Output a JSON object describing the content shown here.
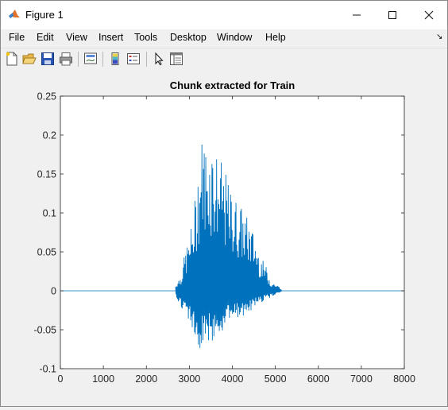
{
  "window": {
    "title": "Figure 1",
    "minimize_glyph": "—",
    "maximize_glyph": "☐",
    "close_glyph": "✕"
  },
  "menu": {
    "items": [
      "File",
      "Edit",
      "View",
      "Insert",
      "Tools",
      "Desktop",
      "Window",
      "Help"
    ],
    "dock_glyph": "↘"
  },
  "toolbar": {
    "icons": [
      "new-figure-icon",
      "open-file-icon",
      "save-icon",
      "print-icon",
      "link-plot-icon",
      "insert-colorbar-icon",
      "insert-legend-icon",
      "edit-plot-pointer-icon",
      "property-inspector-icon"
    ]
  },
  "colors": {
    "signal": "#0072BD",
    "axes_bg": "#ffffff",
    "figure_bg": "#f0f0f0"
  },
  "chart_data": {
    "type": "line",
    "title": "Chunk extracted for Train",
    "xlabel": "",
    "ylabel": "",
    "xlim": [
      0,
      8000
    ],
    "ylim": [
      -0.1,
      0.25
    ],
    "xticks": [
      "0",
      "1000",
      "2000",
      "3000",
      "4000",
      "5000",
      "6000",
      "7000",
      "8000"
    ],
    "yticks": [
      "-0.1",
      "-0.05",
      "0",
      "0.05",
      "0.1",
      "0.15",
      "0.2",
      "0.25"
    ],
    "grid": false,
    "series": [
      {
        "envelope_x": [
          0,
          2650,
          2700,
          2800,
          2900,
          3000,
          3100,
          3200,
          3300,
          3400,
          3500,
          3600,
          3700,
          3800,
          3900,
          4000,
          4100,
          4200,
          4300,
          4400,
          4500,
          4600,
          4700,
          4800,
          4900,
          5000,
          5100,
          5150,
          5200,
          8000
        ],
        "envelope_max": [
          0,
          0,
          0.012,
          0.02,
          0.05,
          0.07,
          0.1,
          0.16,
          0.205,
          0.19,
          0.2,
          0.185,
          0.17,
          0.16,
          0.14,
          0.125,
          0.12,
          0.11,
          0.1,
          0.09,
          0.075,
          0.055,
          0.04,
          0.03,
          0.012,
          0.01,
          0.005,
          0,
          0,
          0
        ],
        "envelope_min": [
          0,
          0,
          -0.012,
          -0.02,
          -0.03,
          -0.045,
          -0.055,
          -0.07,
          -0.078,
          -0.075,
          -0.07,
          -0.06,
          -0.055,
          -0.05,
          -0.045,
          -0.04,
          -0.038,
          -0.035,
          -0.03,
          -0.028,
          -0.022,
          -0.018,
          -0.015,
          -0.012,
          -0.008,
          -0.005,
          -0.003,
          0,
          0,
          0
        ]
      }
    ]
  }
}
